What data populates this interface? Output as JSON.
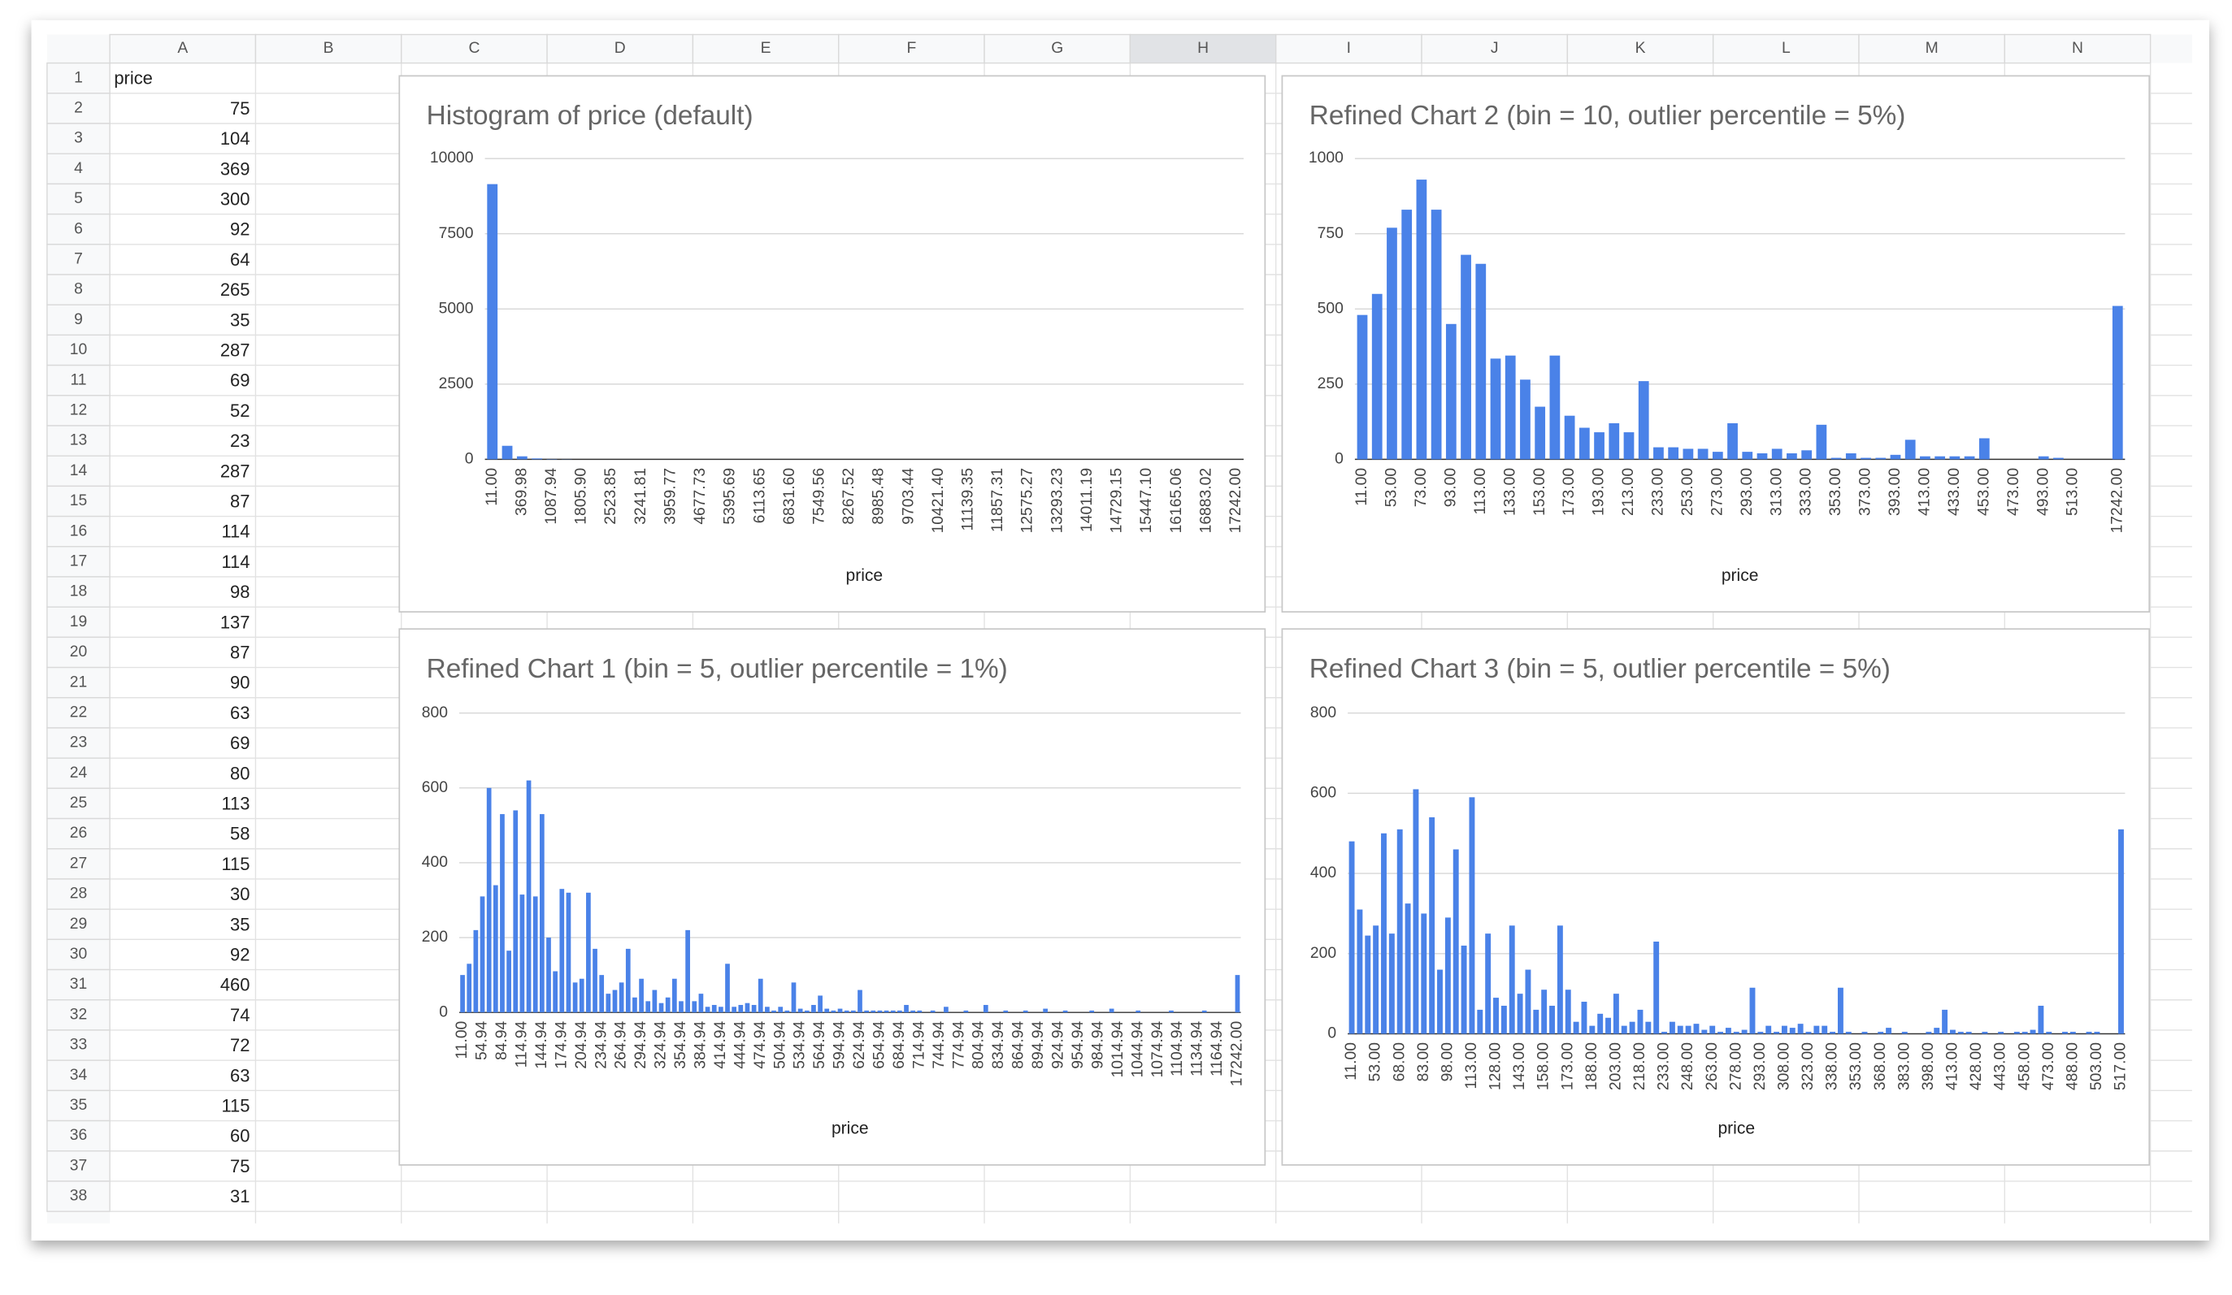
{
  "sheet": {
    "columns": [
      "A",
      "B",
      "C",
      "D",
      "E",
      "F",
      "G",
      "H",
      "I",
      "J",
      "K",
      "L",
      "M",
      "N"
    ],
    "rows": [
      1,
      2,
      3,
      4,
      5,
      6,
      7,
      8,
      9,
      10,
      11,
      12,
      13,
      14,
      15,
      16,
      17,
      18,
      19,
      20,
      21,
      22,
      23,
      24,
      25,
      26,
      27,
      28,
      29,
      30,
      31,
      32,
      33,
      34,
      35,
      36,
      37,
      38
    ],
    "header": "price",
    "values": [
      75,
      104,
      369,
      300,
      92,
      64,
      265,
      35,
      287,
      69,
      52,
      23,
      287,
      87,
      114,
      114,
      98,
      137,
      87,
      90,
      63,
      69,
      80,
      113,
      58,
      115,
      30,
      35,
      92,
      460,
      74,
      72,
      63,
      115,
      60,
      75,
      31
    ]
  },
  "charts": [
    {
      "type": "bar",
      "title": "Histogram of price (default)",
      "x_label": "price",
      "color": "#4a82e8",
      "grid": true,
      "ylim": [
        0,
        10000
      ],
      "yticks": [
        0,
        2500,
        5000,
        7500,
        10000
      ],
      "categories": [
        "11.00",
        null,
        "369.98",
        null,
        "1087.94",
        null,
        "1805.90",
        null,
        "2523.85",
        null,
        "3241.81",
        null,
        "3959.77",
        null,
        "4677.73",
        null,
        "5395.69",
        null,
        "6113.65",
        null,
        "6831.60",
        null,
        "7549.56",
        null,
        "8267.52",
        null,
        "8985.48",
        null,
        "9703.44",
        null,
        "10421.40",
        null,
        "11139.35",
        null,
        "11857.31",
        null,
        "12575.27",
        null,
        "13293.23",
        null,
        "14011.19",
        null,
        "14729.15",
        null,
        "15447.10",
        null,
        "16165.06",
        null,
        "16883.02",
        null,
        "17242.00"
      ],
      "values": [
        9150,
        450,
        100,
        30,
        10,
        5,
        0,
        0,
        0,
        0,
        0,
        0,
        0,
        0,
        0,
        0,
        0,
        0,
        0,
        0,
        0,
        0,
        0,
        0,
        0,
        0,
        0,
        0,
        0,
        0,
        0,
        0,
        0,
        0,
        0,
        0,
        0,
        0,
        0,
        0,
        0,
        0,
        0,
        0,
        0,
        0,
        0,
        0,
        0,
        0,
        0
      ]
    },
    {
      "type": "bar",
      "title": "Refined Chart 2 (bin = 10, outlier percentile = 5%)",
      "x_label": "price",
      "color": "#4a82e8",
      "grid": true,
      "ylim": [
        0,
        1000
      ],
      "yticks": [
        0,
        250,
        500,
        750,
        1000
      ],
      "categories": [
        "11.00",
        null,
        "53.00",
        null,
        "73.00",
        null,
        "93.00",
        null,
        "113.00",
        null,
        "133.00",
        null,
        "153.00",
        null,
        "173.00",
        null,
        "193.00",
        null,
        "213.00",
        null,
        "233.00",
        null,
        "253.00",
        null,
        "273.00",
        null,
        "293.00",
        null,
        "313.00",
        null,
        "333.00",
        null,
        "353.00",
        null,
        "373.00",
        null,
        "393.00",
        null,
        "413.00",
        null,
        "433.00",
        null,
        "453.00",
        null,
        "473.00",
        null,
        "493.00",
        null,
        "513.00",
        null,
        null,
        "17242.00"
      ],
      "values": [
        480,
        550,
        770,
        830,
        930,
        830,
        450,
        680,
        650,
        335,
        345,
        265,
        175,
        345,
        145,
        105,
        90,
        120,
        90,
        260,
        40,
        40,
        35,
        35,
        25,
        120,
        25,
        20,
        35,
        20,
        30,
        115,
        5,
        20,
        5,
        5,
        15,
        65,
        10,
        10,
        10,
        10,
        70,
        0,
        0,
        0,
        10,
        5,
        0,
        0,
        0,
        510
      ]
    },
    {
      "type": "bar",
      "title": "Refined Chart 1 (bin = 5, outlier percentile = 1%)",
      "x_label": "price",
      "color": "#4a82e8",
      "grid": true,
      "ylim": [
        0,
        800
      ],
      "yticks": [
        0,
        200,
        400,
        600,
        800
      ],
      "categories": [
        "11.00",
        null,
        null,
        "54.94",
        null,
        null,
        "84.94",
        null,
        null,
        "114.94",
        null,
        null,
        "144.94",
        null,
        null,
        "174.94",
        null,
        null,
        "204.94",
        null,
        null,
        "234.94",
        null,
        null,
        "264.94",
        null,
        null,
        "294.94",
        null,
        null,
        "324.94",
        null,
        null,
        "354.94",
        null,
        null,
        "384.94",
        null,
        null,
        "414.94",
        null,
        null,
        "444.94",
        null,
        null,
        "474.94",
        null,
        null,
        "504.94",
        null,
        null,
        "534.94",
        null,
        null,
        "564.94",
        null,
        null,
        "594.94",
        null,
        null,
        "624.94",
        null,
        null,
        "654.94",
        null,
        null,
        "684.94",
        null,
        null,
        "714.94",
        null,
        null,
        "744.94",
        null,
        null,
        "774.94",
        null,
        null,
        "804.94",
        null,
        null,
        "834.94",
        null,
        null,
        "864.94",
        null,
        null,
        "894.94",
        null,
        null,
        "924.94",
        null,
        null,
        "954.94",
        null,
        null,
        "984.94",
        null,
        null,
        "1014.94",
        null,
        null,
        "1044.94",
        null,
        null,
        "1074.94",
        null,
        null,
        "1104.94",
        null,
        null,
        "1134.94",
        null,
        null,
        "1164.94",
        null,
        null,
        "17242.00"
      ],
      "values": [
        100,
        130,
        220,
        310,
        600,
        340,
        530,
        165,
        540,
        315,
        620,
        310,
        530,
        200,
        110,
        330,
        320,
        80,
        90,
        320,
        170,
        100,
        50,
        60,
        80,
        170,
        40,
        90,
        30,
        60,
        25,
        40,
        90,
        30,
        220,
        30,
        50,
        15,
        20,
        15,
        130,
        15,
        20,
        25,
        20,
        90,
        15,
        5,
        15,
        5,
        80,
        10,
        5,
        20,
        45,
        10,
        5,
        10,
        5,
        5,
        60,
        5,
        5,
        5,
        5,
        5,
        5,
        20,
        5,
        5,
        0,
        5,
        0,
        15,
        0,
        0,
        5,
        0,
        0,
        20,
        0,
        0,
        5,
        0,
        0,
        5,
        0,
        0,
        10,
        0,
        0,
        5,
        0,
        0,
        0,
        5,
        0,
        0,
        10,
        0,
        0,
        0,
        5,
        0,
        0,
        0,
        0,
        5,
        0,
        0,
        0,
        0,
        5,
        0,
        0,
        0,
        0,
        100
      ]
    },
    {
      "type": "bar",
      "title": "Refined Chart 3 (bin = 5, outlier percentile = 5%)",
      "x_label": "price",
      "color": "#4a82e8",
      "grid": true,
      "ylim": [
        0,
        800
      ],
      "yticks": [
        0,
        200,
        400,
        600,
        800
      ],
      "categories": [
        "11.00",
        null,
        null,
        "53.00",
        null,
        null,
        "68.00",
        null,
        null,
        "83.00",
        null,
        null,
        "98.00",
        null,
        null,
        "113.00",
        null,
        null,
        "128.00",
        null,
        null,
        "143.00",
        null,
        null,
        "158.00",
        null,
        null,
        "173.00",
        null,
        null,
        "188.00",
        null,
        null,
        "203.00",
        null,
        null,
        "218.00",
        null,
        null,
        "233.00",
        null,
        null,
        "248.00",
        null,
        null,
        "263.00",
        null,
        null,
        "278.00",
        null,
        null,
        "293.00",
        null,
        null,
        "308.00",
        null,
        null,
        "323.00",
        null,
        null,
        "338.00",
        null,
        null,
        "353.00",
        null,
        null,
        "368.00",
        null,
        null,
        "383.00",
        null,
        null,
        "398.00",
        null,
        null,
        "413.00",
        null,
        null,
        "428.00",
        null,
        null,
        "443.00",
        null,
        null,
        "458.00",
        null,
        null,
        "473.00",
        null,
        null,
        "488.00",
        null,
        null,
        "503.00",
        null,
        null,
        "517.00"
      ],
      "values": [
        480,
        310,
        245,
        270,
        500,
        250,
        510,
        325,
        610,
        300,
        540,
        160,
        290,
        460,
        220,
        590,
        60,
        250,
        90,
        70,
        270,
        100,
        160,
        60,
        110,
        70,
        270,
        110,
        30,
        80,
        20,
        50,
        40,
        100,
        20,
        30,
        60,
        30,
        230,
        5,
        30,
        20,
        20,
        25,
        10,
        20,
        5,
        15,
        5,
        10,
        115,
        5,
        20,
        5,
        20,
        15,
        25,
        5,
        20,
        20,
        5,
        115,
        5,
        0,
        5,
        0,
        5,
        15,
        0,
        5,
        0,
        0,
        5,
        15,
        60,
        10,
        5,
        5,
        0,
        5,
        0,
        5,
        0,
        5,
        5,
        10,
        70,
        5,
        0,
        5,
        5,
        0,
        5,
        5,
        0,
        0,
        510
      ]
    }
  ]
}
